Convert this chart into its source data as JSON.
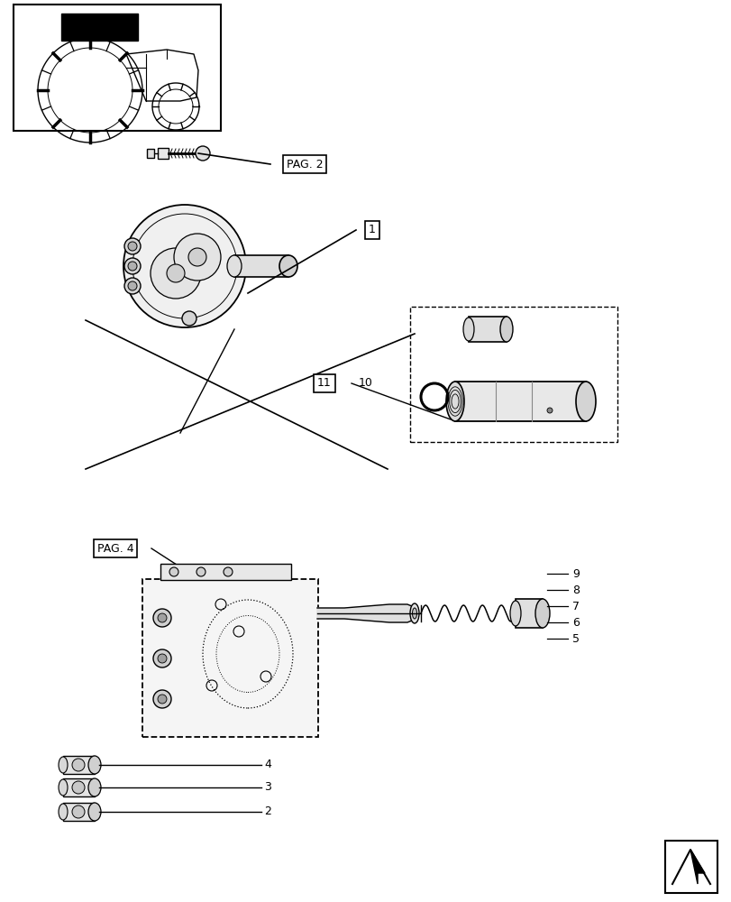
{
  "bg_color": "#ffffff",
  "fig_width": 8.12,
  "fig_height": 10.0,
  "dpi": 100,
  "labels": {
    "pag2": "PAG. 2",
    "pag4": "PAG. 4",
    "item1": "1",
    "item2": "2",
    "item3": "3",
    "item4": "4",
    "item5": "5",
    "item6": "6",
    "item7": "7",
    "item8": "8",
    "item9": "9",
    "item10": "10",
    "item11": "11"
  },
  "line_color": "#000000",
  "box_color": "#000000"
}
